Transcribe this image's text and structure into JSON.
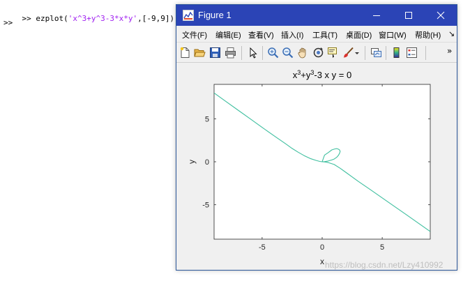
{
  "console": {
    "prompt": ">>",
    "command_prefix": "ezplot(",
    "command_string": "'x^3+y^3-3*x*y'",
    "command_suffix": ",[-9,9])",
    "prompt2": ">>"
  },
  "window": {
    "title": "Figure 1",
    "icon": "matlab-figure-icon"
  },
  "menu": [
    "文件(F)",
    "编辑(E)",
    "查看(V)",
    "插入(I)",
    "工具(T)",
    "桌面(D)",
    "窗口(W)",
    "帮助(H)"
  ],
  "menu_overflow_glyph": "↘",
  "toolbar": {
    "icons": [
      "new-figure-icon",
      "open-file-icon",
      "save-icon",
      "print-icon",
      "pointer-icon",
      "zoom-in-icon",
      "zoom-out-icon",
      "pan-icon",
      "rotate-icon",
      "data-cursor-icon",
      "brush-icon",
      "link-plot-icon",
      "colorbar-icon",
      "legend-icon"
    ],
    "overflow_glyph": "»"
  },
  "colors": {
    "titlebar": "#2b44b6",
    "curve": "#3fbf9f",
    "string": "#a020f0"
  },
  "chart_data": {
    "type": "line",
    "title_parts": [
      "x",
      "3",
      "+y",
      "3",
      "-3 x y = 0"
    ],
    "xlabel": "x",
    "ylabel": "y",
    "xlim": [
      -9,
      9
    ],
    "ylim": [
      -9,
      9
    ],
    "xticks": [
      -5,
      0,
      5
    ],
    "yticks": [
      -5,
      0,
      5
    ],
    "xtick_labels": [
      "-5",
      "0",
      "5"
    ],
    "ytick_labels": [
      "-5",
      "0",
      "5"
    ],
    "series": [
      {
        "equation": "x^3+y^3-3*x*y=0",
        "x": [
          -9,
          -8,
          -7,
          -6,
          -5,
          -4,
          -3,
          -2.5,
          -2,
          -1.5,
          -1,
          -0.5,
          -0.2,
          0,
          0.2,
          0.5,
          0.8,
          1.0,
          1.2,
          1.35,
          1.45,
          1.5,
          1.45,
          1.35,
          1.2,
          1.0,
          0.8,
          0.5,
          0.2,
          0,
          0.2,
          0.5,
          1,
          1.5,
          2,
          2.5,
          3,
          4,
          5,
          6,
          7,
          8,
          9
        ],
        "y": [
          8.0,
          7.0,
          6.0,
          5.0,
          4.0,
          3.02,
          2.05,
          1.55,
          1.11,
          0.71,
          0.38,
          0.15,
          0.04,
          0,
          0.013,
          0.086,
          0.21,
          0.32,
          0.51,
          0.75,
          1.0,
          1.2,
          1.37,
          1.47,
          1.53,
          1.47,
          1.38,
          1.06,
          0.78,
          0,
          -0.013,
          -0.086,
          -0.32,
          -0.75,
          -1.26,
          -1.77,
          -2.28,
          -3.23,
          -4.2,
          -5.17,
          -6.15,
          -7.13,
          -8.12
        ]
      }
    ],
    "grid": false
  },
  "watermark": "https://blog.csdn.net/Lzy410992"
}
